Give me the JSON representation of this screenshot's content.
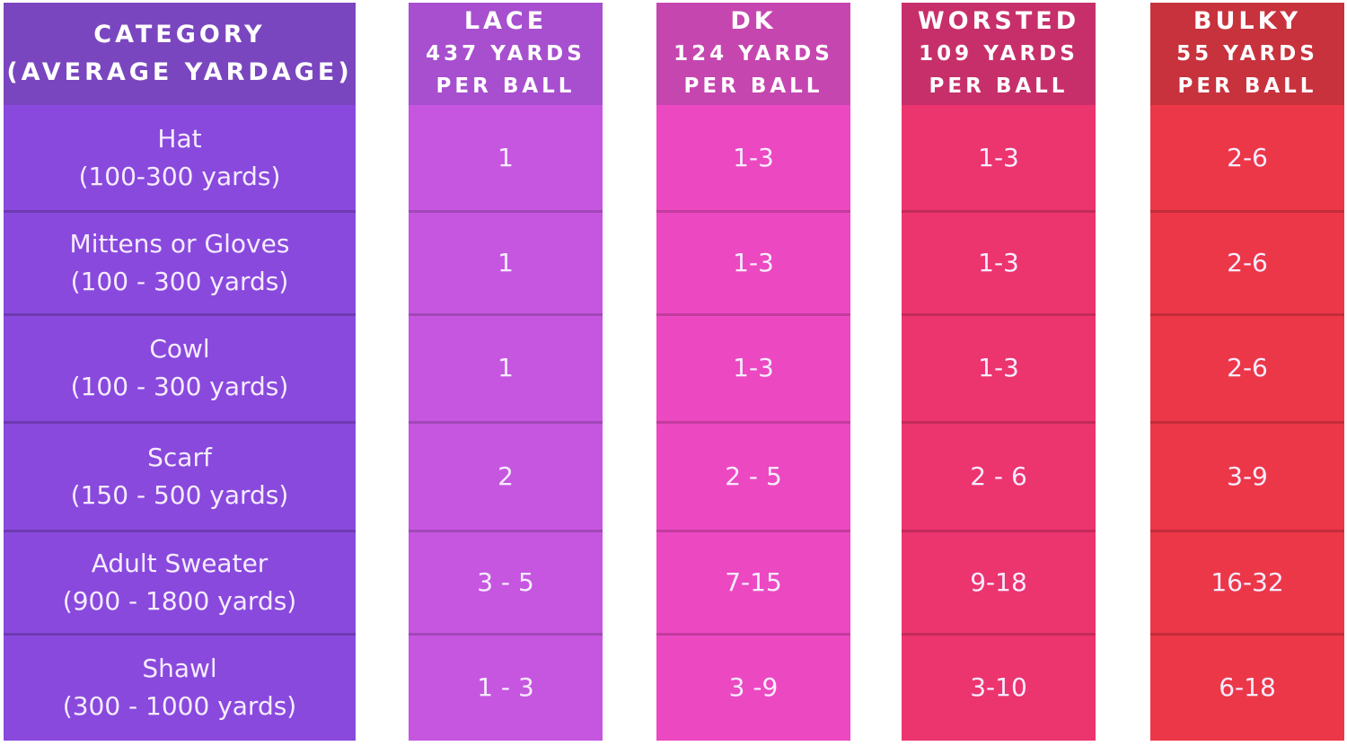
{
  "table": {
    "category_header": {
      "line1": "CATEGORY",
      "line2": "(AVERAGE YARDAGE)"
    },
    "columns": [
      {
        "title": "LACE",
        "line2": "437 YARDS",
        "line3": "PER BALL",
        "header_color": "#a74fcf",
        "cell_color": "#c656e0"
      },
      {
        "title": "DK",
        "line2": "124 YARDS",
        "line3": "PER BALL",
        "header_color": "#c646b0",
        "cell_color": "#ec48c2"
      },
      {
        "title": "WORSTED",
        "line2": "109 YARDS",
        "line3": "PER BALL",
        "header_color": "#c72f6b",
        "cell_color": "#ec346f"
      },
      {
        "title": "BULKY",
        "line2": "55 YARDS",
        "line3": "PER BALL",
        "header_color": "#c7323d",
        "cell_color": "#ec3748"
      }
    ],
    "category_colors": {
      "header": "#7a46bf",
      "cell": "#8949dd"
    },
    "rows": [
      {
        "name": "Hat",
        "range": "(100-300 yards)",
        "values": [
          "1",
          "1-3",
          "1-3",
          "2-6"
        ]
      },
      {
        "name": "Mittens or Gloves",
        "range": "(100 - 300 yards)",
        "values": [
          "1",
          "1-3",
          "1-3",
          "2-6"
        ]
      },
      {
        "name": "Cowl",
        "range": "(100 - 300 yards)",
        "values": [
          "1",
          "1-3",
          "1-3",
          "2-6"
        ]
      },
      {
        "name": "Scarf",
        "range": "(150 - 500 yards)",
        "values": [
          "2",
          "2 - 5",
          "2 - 6",
          "3-9"
        ]
      },
      {
        "name": "Adult Sweater",
        "range": "(900 - 1800 yards)",
        "values": [
          "3 - 5",
          "7-15",
          "9-18",
          "16-32"
        ]
      },
      {
        "name": "Shawl",
        "range": "(300 - 1000 yards)",
        "values": [
          "1 - 3",
          "3 -9",
          "3-10",
          "6-18"
        ]
      }
    ]
  }
}
